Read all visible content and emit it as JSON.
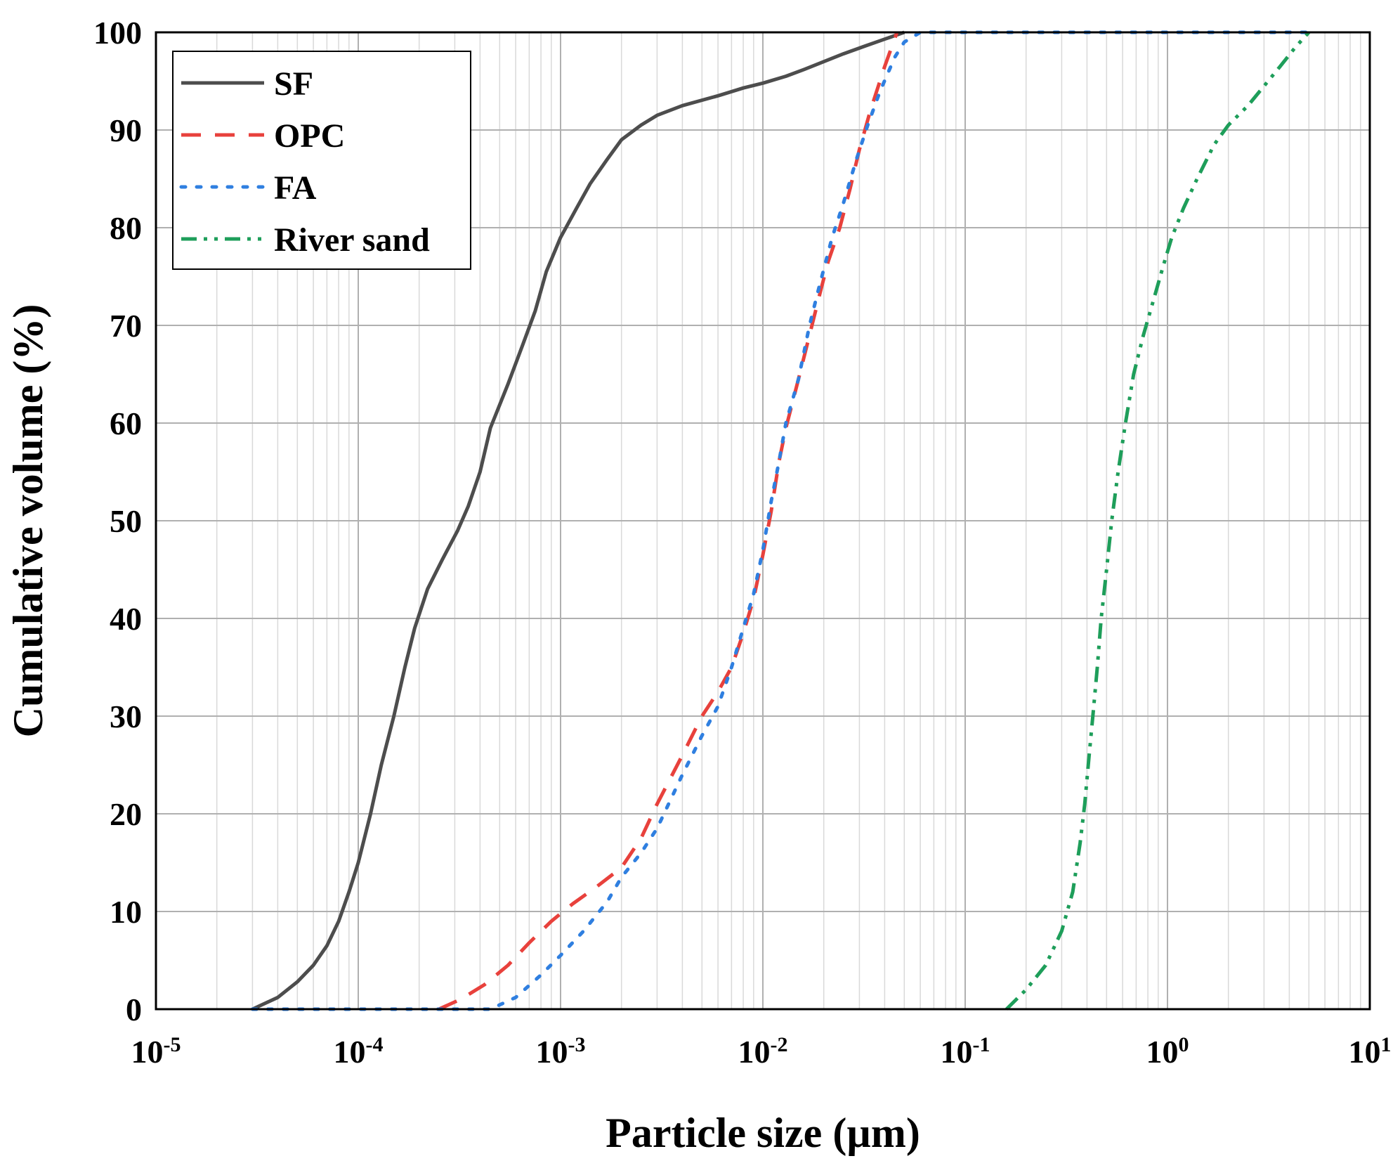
{
  "chart_data": {
    "type": "line",
    "title": "",
    "xlabel": "Particle size (µm)",
    "ylabel": "Cumulative volume (%)",
    "xscale": "log",
    "xlim": [
      1e-05,
      10
    ],
    "ylim": [
      0,
      100
    ],
    "grid": true,
    "legend_position": "top-left",
    "x_ticks": [
      {
        "value": 1e-05,
        "base": "10",
        "exp": "-5"
      },
      {
        "value": 0.0001,
        "base": "10",
        "exp": "-4"
      },
      {
        "value": 0.001,
        "base": "10",
        "exp": "-3"
      },
      {
        "value": 0.01,
        "base": "10",
        "exp": "-2"
      },
      {
        "value": 0.1,
        "base": "10",
        "exp": "-1"
      },
      {
        "value": 1,
        "base": "10",
        "exp": "0"
      },
      {
        "value": 10,
        "base": "10",
        "exp": "1"
      }
    ],
    "y_ticks": [
      "0",
      "10",
      "20",
      "30",
      "40",
      "50",
      "60",
      "70",
      "80",
      "90",
      "100"
    ],
    "series": [
      {
        "name": "SF",
        "color": "#4d4d4d",
        "style": "solid",
        "points": [
          [
            3e-05,
            0
          ],
          [
            4e-05,
            1.2
          ],
          [
            5e-05,
            2.8
          ],
          [
            6e-05,
            4.5
          ],
          [
            7e-05,
            6.5
          ],
          [
            8e-05,
            9
          ],
          [
            9e-05,
            12
          ],
          [
            0.0001,
            15
          ],
          [
            0.000115,
            20
          ],
          [
            0.00013,
            25
          ],
          [
            0.00015,
            30
          ],
          [
            0.00017,
            35
          ],
          [
            0.00019,
            39
          ],
          [
            0.00022,
            43
          ],
          [
            0.00026,
            46
          ],
          [
            0.00031,
            49
          ],
          [
            0.00035,
            51.5
          ],
          [
            0.0004,
            55
          ],
          [
            0.00045,
            59.5
          ],
          [
            0.00055,
            64
          ],
          [
            0.00065,
            68
          ],
          [
            0.00075,
            71.5
          ],
          [
            0.00085,
            75.5
          ],
          [
            0.001,
            79
          ],
          [
            0.0012,
            82
          ],
          [
            0.0014,
            84.5
          ],
          [
            0.0017,
            87
          ],
          [
            0.002,
            89
          ],
          [
            0.0025,
            90.5
          ],
          [
            0.003,
            91.5
          ],
          [
            0.004,
            92.5
          ],
          [
            0.006,
            93.5
          ],
          [
            0.008,
            94.3
          ],
          [
            0.01,
            94.8
          ],
          [
            0.013,
            95.5
          ],
          [
            0.016,
            96.2
          ],
          [
            0.02,
            97
          ],
          [
            0.025,
            97.8
          ],
          [
            0.032,
            98.6
          ],
          [
            0.04,
            99.3
          ],
          [
            0.05,
            100
          ]
        ]
      },
      {
        "name": "OPC",
        "color": "#e8413c",
        "style": "dashed",
        "points": [
          [
            0.00025,
            0
          ],
          [
            0.00032,
            1
          ],
          [
            0.00042,
            2.5
          ],
          [
            0.00055,
            4.5
          ],
          [
            0.0007,
            6.8
          ],
          [
            0.0009,
            9
          ],
          [
            0.00115,
            10.8
          ],
          [
            0.0015,
            12.5
          ],
          [
            0.002,
            14.5
          ],
          [
            0.0025,
            17.5
          ],
          [
            0.003,
            21
          ],
          [
            0.004,
            26
          ],
          [
            0.005,
            30
          ],
          [
            0.006,
            32.5
          ],
          [
            0.007,
            35
          ],
          [
            0.008,
            38.5
          ],
          [
            0.009,
            42
          ],
          [
            0.01,
            46.5
          ],
          [
            0.011,
            51
          ],
          [
            0.012,
            56
          ],
          [
            0.013,
            59.5
          ],
          [
            0.015,
            64.5
          ],
          [
            0.017,
            69
          ],
          [
            0.019,
            73
          ],
          [
            0.021,
            76.5
          ],
          [
            0.024,
            80
          ],
          [
            0.027,
            84
          ],
          [
            0.03,
            88
          ],
          [
            0.034,
            92
          ],
          [
            0.04,
            96.5
          ],
          [
            0.046,
            100
          ]
        ]
      },
      {
        "name": "FA",
        "color": "#2f7fe0",
        "style": "dotted",
        "points": [
          [
            3e-05,
            0
          ],
          [
            0.0002,
            0
          ],
          [
            0.00045,
            0
          ],
          [
            0.0006,
            1.2
          ],
          [
            0.0008,
            3.5
          ],
          [
            0.001,
            5.5
          ],
          [
            0.0013,
            8
          ],
          [
            0.0017,
            11
          ],
          [
            0.002,
            13.5
          ],
          [
            0.0025,
            16
          ],
          [
            0.003,
            18.5
          ],
          [
            0.004,
            24
          ],
          [
            0.005,
            28
          ],
          [
            0.006,
            31
          ],
          [
            0.007,
            35
          ],
          [
            0.008,
            39
          ],
          [
            0.009,
            42.5
          ],
          [
            0.01,
            47
          ],
          [
            0.011,
            52
          ],
          [
            0.012,
            56
          ],
          [
            0.013,
            60
          ],
          [
            0.015,
            64.5
          ],
          [
            0.017,
            70
          ],
          [
            0.019,
            74
          ],
          [
            0.022,
            79
          ],
          [
            0.025,
            82.5
          ],
          [
            0.029,
            87
          ],
          [
            0.033,
            90.5
          ],
          [
            0.038,
            94
          ],
          [
            0.045,
            97.5
          ],
          [
            0.05,
            99
          ],
          [
            0.06,
            100
          ],
          [
            5,
            100
          ]
        ]
      },
      {
        "name": "River sand",
        "color": "#1e9e5a",
        "style": "dashdotdot",
        "points": [
          [
            0.16,
            0
          ],
          [
            0.2,
            2
          ],
          [
            0.25,
            4.5
          ],
          [
            0.3,
            8
          ],
          [
            0.34,
            12
          ],
          [
            0.37,
            17
          ],
          [
            0.39,
            21
          ],
          [
            0.41,
            26
          ],
          [
            0.43,
            30.5
          ],
          [
            0.45,
            35
          ],
          [
            0.47,
            40
          ],
          [
            0.5,
            45
          ],
          [
            0.53,
            50
          ],
          [
            0.57,
            55
          ],
          [
            0.62,
            60
          ],
          [
            0.68,
            65
          ],
          [
            0.76,
            69
          ],
          [
            0.85,
            72.5
          ],
          [
            0.95,
            76
          ],
          [
            1.05,
            79
          ],
          [
            1.2,
            82
          ],
          [
            1.4,
            85
          ],
          [
            1.7,
            88.5
          ],
          [
            2,
            90.5
          ],
          [
            2.5,
            92.5
          ],
          [
            3,
            94.5
          ],
          [
            3.6,
            96.5
          ],
          [
            4.3,
            98.5
          ],
          [
            5,
            100
          ]
        ]
      }
    ]
  }
}
